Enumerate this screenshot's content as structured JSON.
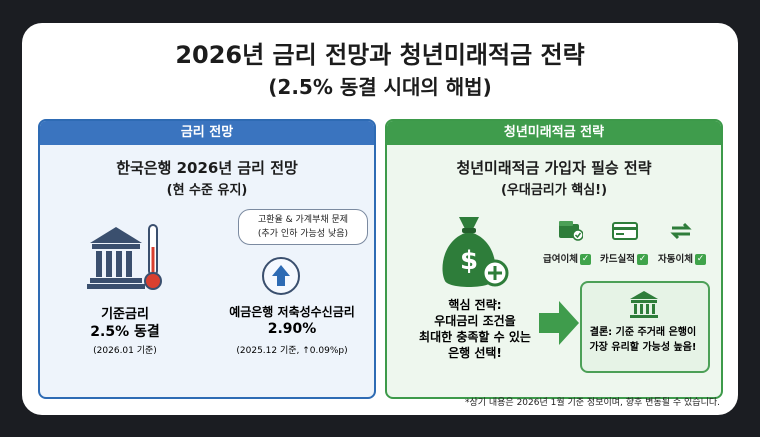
{
  "title": "2026년 금리 전망과 청년미래적금 전략",
  "subtitle": "(2.5% 동결 시대의 해법)",
  "left_panel": {
    "header": "금리 전망",
    "heading": "한국은행 2026년 금리 전망",
    "subheading": "(현 수준 유지)",
    "bubble_line1": "고환율 & 가계부채 문제",
    "bubble_line2": "(추가 인하 가능성 낮음)",
    "base_rate_label": "기준금리",
    "base_rate_value": "2.5% 동결",
    "base_rate_date": "(2026.01 기준)",
    "deposit_label": "예금은행 저축성수신금리",
    "deposit_value": "2.90%",
    "deposit_date": "(2025.12 기준, ↑0.09%p)"
  },
  "right_panel": {
    "header": "청년미래적금 전략",
    "heading": "청년미래적금 가입자 필승 전략",
    "subheading": "(우대금리가 핵심!)",
    "features": [
      "급여이체",
      "카드실적",
      "자동이체"
    ],
    "check_mark": "✓",
    "core_line1": "핵심 전략:",
    "core_line2": "우대금리 조건을",
    "core_line3": "최대한 충족할 수 있는",
    "core_line4": "은행 선택!",
    "conclusion_line1": "결론: 기준 주거래 은행이",
    "conclusion_line2": "가장 유리할 가능성 높음!"
  },
  "footnote": "*상기 내용은 2026년 1월 기준 정보이며, 향후 변동될 수 있습니다.",
  "colors": {
    "blue": "#3a74bf",
    "green": "#3f9c4c",
    "dark_green": "#2e7d3a"
  }
}
